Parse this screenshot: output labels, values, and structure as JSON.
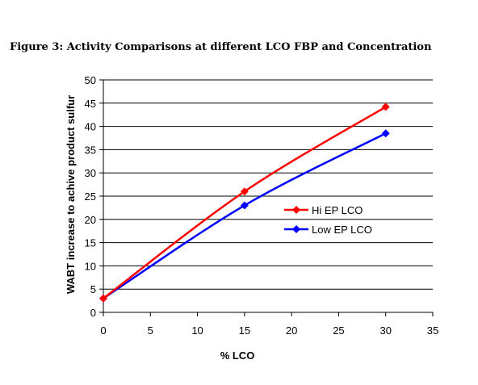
{
  "figure": {
    "title": "Figure 3: Activity Comparisons at different LCO FBP and Concentration"
  },
  "chart_data": {
    "type": "line",
    "title": "",
    "xlabel": "% LCO",
    "ylabel": "WABT increase to achive product sulfur",
    "xlim": [
      0,
      35
    ],
    "ylim": [
      0,
      50
    ],
    "xticks": [
      0,
      5,
      10,
      15,
      20,
      25,
      30,
      35
    ],
    "yticks": [
      0,
      5,
      10,
      15,
      20,
      25,
      30,
      35,
      40,
      45,
      50
    ],
    "grid": "horizontal",
    "legend_position": "right",
    "series": [
      {
        "name": "Hi EP LCO",
        "color": "#ff0000",
        "x": [
          0,
          15,
          30
        ],
        "y": [
          3,
          26,
          44.2
        ]
      },
      {
        "name": "Low EP LCO",
        "color": "#0000ff",
        "x": [
          0,
          15,
          30
        ],
        "y": [
          3,
          23,
          38.5
        ]
      }
    ]
  }
}
